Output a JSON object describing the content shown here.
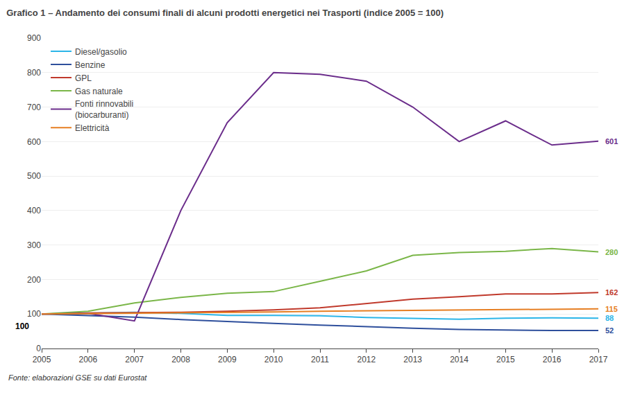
{
  "chart_data": {
    "type": "line",
    "title": "Grafico 1 – Andamento dei consumi finali di alcuni prodotti energetici nei Trasporti (indice 2005 = 100)",
    "x": [
      2005,
      2006,
      2007,
      2008,
      2009,
      2010,
      2011,
      2012,
      2013,
      2014,
      2015,
      2016,
      2017
    ],
    "series": [
      {
        "name": "Diesel/gasolio",
        "color": "#2BB5E8",
        "values": [
          100,
          103,
          105,
          102,
          96,
          96,
          95,
          90,
          87,
          85,
          88,
          89,
          88
        ],
        "end_label": 88
      },
      {
        "name": "Benzine",
        "color": "#2E4F9C",
        "values": [
          100,
          96,
          91,
          84,
          78,
          73,
          68,
          63,
          59,
          55,
          53,
          52,
          52
        ],
        "end_label": 52
      },
      {
        "name": "GPL",
        "color": "#C0392B",
        "values": [
          100,
          103,
          104,
          105,
          108,
          112,
          118,
          130,
          143,
          150,
          158,
          158,
          162
        ],
        "end_label": 162
      },
      {
        "name": "Gas naturale",
        "color": "#7AB648",
        "values": [
          100,
          108,
          132,
          148,
          160,
          165,
          195,
          225,
          270,
          278,
          282,
          290,
          280
        ],
        "end_label": 280
      },
      {
        "name": "Fonti rinnovabili\n(biocarburanti)",
        "color": "#6B2D8B",
        "values": [
          100,
          102,
          80,
          400,
          655,
          800,
          795,
          775,
          700,
          600,
          660,
          590,
          601
        ],
        "end_label": 601
      },
      {
        "name": "Elettricità",
        "color": "#E67E22",
        "values": [
          100,
          101,
          102,
          103,
          104,
          106,
          108,
          109,
          110,
          111,
          112,
          114,
          115
        ],
        "end_label": 115
      }
    ],
    "xlim": [
      2005,
      2017
    ],
    "xticks": [
      2005,
      2006,
      2007,
      2008,
      2009,
      2010,
      2011,
      2012,
      2013,
      2014,
      2015,
      2016,
      2017
    ],
    "ylim": [
      0,
      900
    ],
    "yticks": [
      0,
      100,
      200,
      300,
      400,
      500,
      600,
      700,
      800,
      900
    ],
    "grid": "y",
    "legend": "upper left",
    "annotations": [
      {
        "text": "100",
        "x": 2005,
        "y": 100
      }
    ],
    "footnote": "Fonte: elaborazioni GSE su dati Eurostat"
  }
}
